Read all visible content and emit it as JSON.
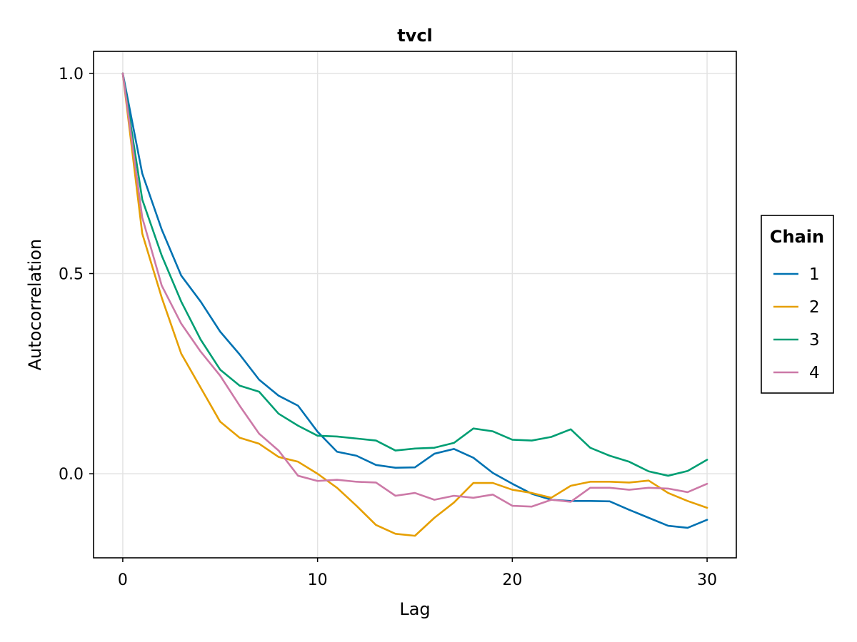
{
  "chart_data": {
    "type": "line",
    "title": "tvcl",
    "xlabel": "Lag",
    "ylabel": "Autocorrelation",
    "xlim": [
      -1.5,
      31.5
    ],
    "ylim": [
      -0.21,
      1.055
    ],
    "xticks": [
      0,
      10,
      20,
      30
    ],
    "xtick_labels": [
      "0",
      "10",
      "20",
      "30"
    ],
    "yticks": [
      0.0,
      0.5,
      1.0
    ],
    "ytick_labels": [
      "0.0",
      "0.5",
      "1.0"
    ],
    "grid": true,
    "legend": {
      "title": "Chain",
      "placement": "right"
    },
    "x": [
      0,
      1,
      2,
      3,
      4,
      5,
      6,
      7,
      8,
      9,
      10,
      11,
      12,
      13,
      14,
      15,
      16,
      17,
      18,
      19,
      20,
      21,
      22,
      23,
      24,
      25,
      26,
      27,
      28,
      29,
      30
    ],
    "series": [
      {
        "name": "1",
        "color": "#0072b2",
        "values": [
          1.0,
          0.75,
          0.61,
          0.495,
          0.43,
          0.355,
          0.298,
          0.235,
          0.195,
          0.17,
          0.105,
          0.055,
          0.045,
          0.022,
          0.015,
          0.016,
          0.05,
          0.062,
          0.04,
          0.002,
          -0.025,
          -0.05,
          -0.065,
          -0.068,
          -0.068,
          -0.069,
          -0.09,
          -0.11,
          -0.13,
          -0.135,
          -0.115
        ]
      },
      {
        "name": "2",
        "color": "#e69f00",
        "values": [
          1.0,
          0.6,
          0.44,
          0.3,
          0.215,
          0.13,
          0.09,
          0.075,
          0.042,
          0.03,
          0.0,
          -0.035,
          -0.08,
          -0.128,
          -0.15,
          -0.155,
          -0.11,
          -0.072,
          -0.023,
          -0.023,
          -0.04,
          -0.048,
          -0.06,
          -0.03,
          -0.02,
          -0.02,
          -0.022,
          -0.017,
          -0.048,
          -0.068,
          -0.085
        ]
      },
      {
        "name": "3",
        "color": "#009e73",
        "values": [
          1.0,
          0.685,
          0.545,
          0.43,
          0.335,
          0.26,
          0.22,
          0.205,
          0.15,
          0.12,
          0.095,
          0.093,
          0.088,
          0.083,
          0.058,
          0.063,
          0.065,
          0.077,
          0.113,
          0.106,
          0.085,
          0.083,
          0.092,
          0.111,
          0.065,
          0.045,
          0.03,
          0.006,
          -0.005,
          0.007,
          0.035
        ]
      },
      {
        "name": "4",
        "color": "#cc79a7",
        "values": [
          1.0,
          0.64,
          0.47,
          0.375,
          0.305,
          0.245,
          0.17,
          0.1,
          0.058,
          -0.005,
          -0.018,
          -0.015,
          -0.02,
          -0.022,
          -0.055,
          -0.048,
          -0.065,
          -0.055,
          -0.06,
          -0.052,
          -0.08,
          -0.082,
          -0.065,
          -0.07,
          -0.035,
          -0.035,
          -0.04,
          -0.035,
          -0.037,
          -0.046,
          -0.025
        ]
      }
    ]
  }
}
